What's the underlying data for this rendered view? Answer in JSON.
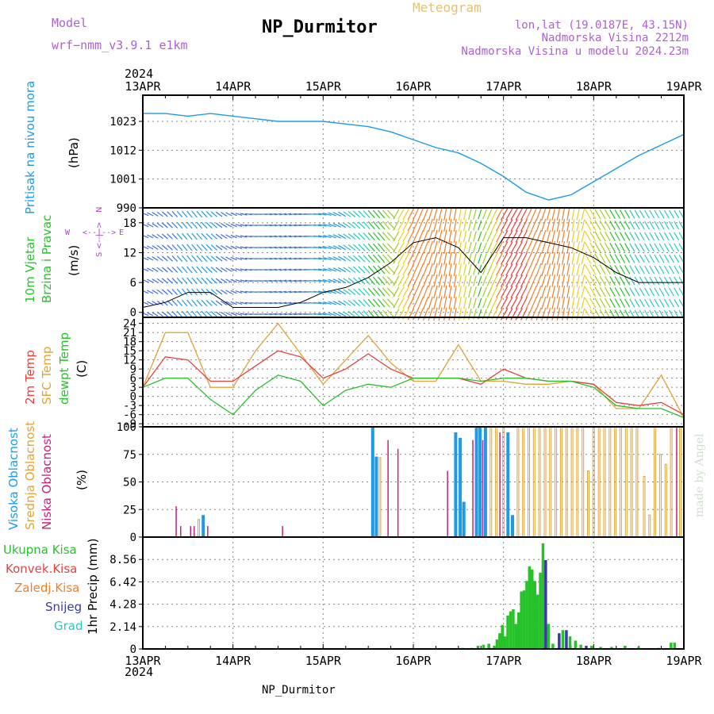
{
  "header": {
    "model_label": "Model",
    "model_name": "wrf−nmm_v3.9.1  e1km",
    "station_title": "NP_Durmitor",
    "meteogram_label": "Meteogram",
    "coords": "lon,lat (19.0187E, 43.15N)",
    "elevation": "Nadmorska Visina 2212m",
    "model_elevation": "Nadmorska Visina u modelu 2024.23m"
  },
  "footer": {
    "station_name": "NP_Durmitor"
  },
  "side_signature": "made by Angel",
  "colors": {
    "pressure": "#1e9be8",
    "temp2m": "#e8413c",
    "sfc_temp": "#e0a43a",
    "dewpoint": "#27c22a",
    "high_cloud": "#1e9be8",
    "mid_cloud": "#e0a43a",
    "low_cloud": "#c8207c",
    "precip_total": "#27c22a",
    "precip_snow": "#3a3aa6",
    "wind_label": "#27c22a",
    "compass": "#b040d8"
  },
  "time_axis": {
    "year_top": "2024",
    "year_bottom": "2024",
    "ticks": [
      "13APR",
      "14APR",
      "15APR",
      "16APR",
      "17APR",
      "18APR",
      "19APR"
    ]
  },
  "chart_data": [
    {
      "type": "line",
      "name": "pressure",
      "ylabel_lines": [
        "Pritisak na nivou mora"
      ],
      "unit": "(hPa)",
      "yticks": [
        "990",
        "1001",
        "1012",
        "1023"
      ],
      "ylim": [
        990,
        1033
      ],
      "x": [
        0,
        0.25,
        0.5,
        0.75,
        1,
        1.25,
        1.5,
        1.75,
        2,
        2.25,
        2.5,
        2.75,
        3,
        3.25,
        3.5,
        3.75,
        4,
        4.25,
        4.5,
        4.75,
        5,
        5.25,
        5.5,
        5.75,
        6
      ],
      "series": [
        {
          "values": [
            1026,
            1026,
            1025,
            1026,
            1025,
            1024,
            1023,
            1023,
            1023,
            1022,
            1021,
            1019,
            1016,
            1013,
            1011,
            1007,
            1002,
            996,
            993,
            995,
            1000,
            1005,
            1010,
            1014,
            1018
          ]
        }
      ]
    },
    {
      "type": "line",
      "name": "wind",
      "ylabel_lines": [
        "10m Vjetar",
        "Brzina i Pravac"
      ],
      "unit": "(m/s)",
      "compass": {
        "west": "W",
        "east": "E",
        "north": "N",
        "south": "S"
      },
      "yticks": [
        "0",
        "6",
        "12",
        "18"
      ],
      "ylim": [
        -1,
        21
      ],
      "x": [
        0,
        0.25,
        0.5,
        0.75,
        1,
        1.25,
        1.5,
        1.75,
        2,
        2.25,
        2.5,
        2.75,
        3,
        3.25,
        3.5,
        3.75,
        4,
        4.25,
        4.5,
        4.75,
        5,
        5.25,
        5.5,
        5.75,
        6
      ],
      "series": [
        {
          "values": [
            1,
            2,
            4,
            4,
            1,
            1,
            1,
            2,
            4,
            5,
            7,
            10,
            14,
            15,
            13,
            8,
            15,
            15,
            14,
            13,
            11,
            8,
            6,
            6,
            6
          ]
        }
      ]
    },
    {
      "type": "line",
      "name": "temperature",
      "ylabel_lines": [
        "2m Temp",
        "SFC Temp",
        "dewpt Temp"
      ],
      "unit": "(C)",
      "yticks": [
        "-9",
        "-6",
        "-3",
        "0",
        "3",
        "6",
        "9",
        "12",
        "15",
        "18",
        "21",
        "24"
      ],
      "ylim": [
        -10,
        26
      ],
      "x": [
        0,
        0.25,
        0.5,
        0.75,
        1,
        1.25,
        1.5,
        1.75,
        2,
        2.25,
        2.5,
        2.75,
        3,
        3.25,
        3.5,
        3.75,
        4,
        4.25,
        4.5,
        4.75,
        5,
        5.25,
        5.5,
        5.75,
        6
      ],
      "series": [
        {
          "name": "2m Temp",
          "values": [
            3,
            13,
            12,
            5,
            5,
            10,
            15,
            13,
            6,
            9,
            14,
            9,
            6,
            6,
            6,
            4,
            9,
            6,
            5,
            5,
            4,
            -2,
            -3,
            -2,
            -6
          ]
        },
        {
          "name": "SFC Temp",
          "values": [
            3,
            21,
            21,
            3,
            3,
            15,
            24,
            14,
            4,
            12,
            20,
            11,
            5,
            5,
            17,
            5,
            5,
            4,
            4,
            5,
            4,
            -4,
            -4,
            7,
            -7
          ]
        },
        {
          "name": "dewpt Temp",
          "values": [
            3,
            6,
            6,
            -1,
            -6,
            2,
            7,
            5,
            -3,
            2,
            4,
            3,
            6,
            6,
            6,
            5,
            6,
            6,
            5,
            5,
            3,
            -3,
            -4,
            -4,
            -7
          ]
        }
      ]
    },
    {
      "type": "bar",
      "name": "cloud",
      "ylabel_lines": [
        "Visoka Oblacnost",
        "Srednja Oblacnost",
        "Niska Oblacnost"
      ],
      "unit": "(%)",
      "yticks": [
        "0",
        "25",
        "50",
        "75",
        "100"
      ],
      "ylim": [
        0,
        100
      ],
      "bars": [
        {
          "x": 0.37,
          "kind": "low",
          "v": 28
        },
        {
          "x": 0.42,
          "kind": "low",
          "v": 10
        },
        {
          "x": 0.53,
          "kind": "low",
          "v": 10
        },
        {
          "x": 0.57,
          "kind": "low",
          "v": 10
        },
        {
          "x": 0.62,
          "kind": "mid",
          "v": 16
        },
        {
          "x": 0.67,
          "kind": "high",
          "v": 20
        },
        {
          "x": 0.72,
          "kind": "low",
          "v": 10
        },
        {
          "x": 1.55,
          "kind": "low",
          "v": 10
        },
        {
          "x": 2.55,
          "kind": "high",
          "v": 100
        },
        {
          "x": 2.59,
          "kind": "high",
          "v": 73
        },
        {
          "x": 2.63,
          "kind": "mid",
          "v": 72
        },
        {
          "x": 2.72,
          "kind": "low",
          "v": 88
        },
        {
          "x": 2.83,
          "kind": "low",
          "v": 80
        },
        {
          "x": 3.38,
          "kind": "low",
          "v": 60
        },
        {
          "x": 3.47,
          "kind": "high",
          "v": 95
        },
        {
          "x": 3.52,
          "kind": "high",
          "v": 90
        },
        {
          "x": 3.56,
          "kind": "high",
          "v": 32
        },
        {
          "x": 3.66,
          "kind": "low",
          "v": 88
        },
        {
          "x": 3.7,
          "kind": "high",
          "v": 100
        },
        {
          "x": 3.74,
          "kind": "high",
          "v": 100
        },
        {
          "x": 3.77,
          "kind": "low",
          "v": 88
        },
        {
          "x": 3.8,
          "kind": "high",
          "v": 100
        },
        {
          "x": 3.86,
          "kind": "mid",
          "v": 100
        },
        {
          "x": 3.92,
          "kind": "mid",
          "v": 100
        },
        {
          "x": 3.96,
          "kind": "low",
          "v": 95
        },
        {
          "x": 4.0,
          "kind": "mid",
          "v": 100
        },
        {
          "x": 4.05,
          "kind": "high",
          "v": 95
        },
        {
          "x": 4.1,
          "kind": "high",
          "v": 20
        },
        {
          "x": 4.16,
          "kind": "mid",
          "v": 100
        },
        {
          "x": 4.22,
          "kind": "mid",
          "v": 100
        },
        {
          "x": 4.28,
          "kind": "mid",
          "v": 100
        },
        {
          "x": 4.34,
          "kind": "mid",
          "v": 100
        },
        {
          "x": 4.4,
          "kind": "mid",
          "v": 100
        },
        {
          "x": 4.46,
          "kind": "mid",
          "v": 100
        },
        {
          "x": 4.52,
          "kind": "mid",
          "v": 100
        },
        {
          "x": 4.58,
          "kind": "mid",
          "v": 100
        },
        {
          "x": 4.64,
          "kind": "mid",
          "v": 100
        },
        {
          "x": 4.7,
          "kind": "mid",
          "v": 100
        },
        {
          "x": 4.76,
          "kind": "mid",
          "v": 100
        },
        {
          "x": 4.82,
          "kind": "mid",
          "v": 100
        },
        {
          "x": 4.88,
          "kind": "mid",
          "v": 100
        },
        {
          "x": 4.94,
          "kind": "mid",
          "v": 60
        },
        {
          "x": 5.0,
          "kind": "mid",
          "v": 100
        },
        {
          "x": 5.06,
          "kind": "mid",
          "v": 100
        },
        {
          "x": 5.12,
          "kind": "mid",
          "v": 100
        },
        {
          "x": 5.18,
          "kind": "mid",
          "v": 100
        },
        {
          "x": 5.24,
          "kind": "mid",
          "v": 100
        },
        {
          "x": 5.3,
          "kind": "mid",
          "v": 100
        },
        {
          "x": 5.36,
          "kind": "mid",
          "v": 100
        },
        {
          "x": 5.42,
          "kind": "mid",
          "v": 100
        },
        {
          "x": 5.48,
          "kind": "mid",
          "v": 100
        },
        {
          "x": 5.56,
          "kind": "mid",
          "v": 55
        },
        {
          "x": 5.62,
          "kind": "mid",
          "v": 20
        },
        {
          "x": 5.68,
          "kind": "mid",
          "v": 100
        },
        {
          "x": 5.74,
          "kind": "mid",
          "v": 75
        },
        {
          "x": 5.8,
          "kind": "mid",
          "v": 66
        },
        {
          "x": 5.86,
          "kind": "mid",
          "v": 100
        },
        {
          "x": 5.92,
          "kind": "low",
          "v": 100
        },
        {
          "x": 5.96,
          "kind": "mid",
          "v": 100
        }
      ]
    },
    {
      "type": "bar",
      "name": "precip",
      "ylabel_lines": [
        "Ukupna Kisa",
        "Konvek.Kisa",
        "Zaledj.Kisa",
        "Snijeg",
        "Grad"
      ],
      "legend_colors": [
        "#27c22a",
        "#e8413c",
        "#f07f2a",
        "#3a3aa6",
        "#28c8c0"
      ],
      "unit": "1hr Precip (mm)",
      "yticks": [
        "0",
        "2.14",
        "4.28",
        "6.42",
        "8.56"
      ],
      "ylim": [
        0,
        10.7
      ],
      "bars": [
        {
          "x": 3.55,
          "v": 0.1,
          "kind": "total"
        },
        {
          "x": 3.65,
          "v": 0.1,
          "kind": "total"
        },
        {
          "x": 3.72,
          "v": 0.3,
          "kind": "total"
        },
        {
          "x": 3.78,
          "v": 0.4,
          "kind": "total"
        },
        {
          "x": 3.84,
          "v": 0.5,
          "kind": "total"
        },
        {
          "x": 3.9,
          "v": 0.3,
          "kind": "total"
        },
        {
          "x": 3.93,
          "v": 0.9,
          "kind": "total"
        },
        {
          "x": 3.96,
          "v": 1.5,
          "kind": "total"
        },
        {
          "x": 3.99,
          "v": 2.3,
          "kind": "total"
        },
        {
          "x": 4.02,
          "v": 1.2,
          "kind": "total"
        },
        {
          "x": 4.05,
          "v": 3.2,
          "kind": "total"
        },
        {
          "x": 4.08,
          "v": 3.6,
          "kind": "total"
        },
        {
          "x": 4.11,
          "v": 3.8,
          "kind": "total"
        },
        {
          "x": 4.14,
          "v": 2.4,
          "kind": "total"
        },
        {
          "x": 4.17,
          "v": 3.5,
          "kind": "total"
        },
        {
          "x": 4.2,
          "v": 5.5,
          "kind": "total"
        },
        {
          "x": 4.23,
          "v": 5.6,
          "kind": "total"
        },
        {
          "x": 4.26,
          "v": 6.5,
          "kind": "total"
        },
        {
          "x": 4.29,
          "v": 7.9,
          "kind": "total"
        },
        {
          "x": 4.32,
          "v": 7.6,
          "kind": "total"
        },
        {
          "x": 4.35,
          "v": 6.5,
          "kind": "total"
        },
        {
          "x": 4.38,
          "v": 5.2,
          "kind": "total"
        },
        {
          "x": 4.41,
          "v": 7.3,
          "kind": "total"
        },
        {
          "x": 4.44,
          "v": 10.1,
          "kind": "total"
        },
        {
          "x": 4.47,
          "v": 8.5,
          "kind": "snow"
        },
        {
          "x": 4.5,
          "v": 2.4,
          "kind": "total"
        },
        {
          "x": 4.55,
          "v": 0.5,
          "kind": "total"
        },
        {
          "x": 4.62,
          "v": 1.5,
          "kind": "snow"
        },
        {
          "x": 4.66,
          "v": 1.8,
          "kind": "total"
        },
        {
          "x": 4.7,
          "v": 1.8,
          "kind": "snow"
        },
        {
          "x": 4.74,
          "v": 1.2,
          "kind": "total"
        },
        {
          "x": 4.8,
          "v": 0.8,
          "kind": "total"
        },
        {
          "x": 4.86,
          "v": 0.4,
          "kind": "total"
        },
        {
          "x": 4.92,
          "v": 0.3,
          "kind": "snow"
        },
        {
          "x": 4.98,
          "v": 0.3,
          "kind": "total"
        },
        {
          "x": 5.08,
          "v": 0.2,
          "kind": "total"
        },
        {
          "x": 5.2,
          "v": 0.2,
          "kind": "total"
        },
        {
          "x": 5.35,
          "v": 0.3,
          "kind": "total"
        },
        {
          "x": 5.5,
          "v": 0.2,
          "kind": "total"
        },
        {
          "x": 5.72,
          "v": 0.1,
          "kind": "total"
        },
        {
          "x": 5.86,
          "v": 0.6,
          "kind": "total"
        },
        {
          "x": 5.9,
          "v": 0.6,
          "kind": "total"
        }
      ]
    }
  ]
}
